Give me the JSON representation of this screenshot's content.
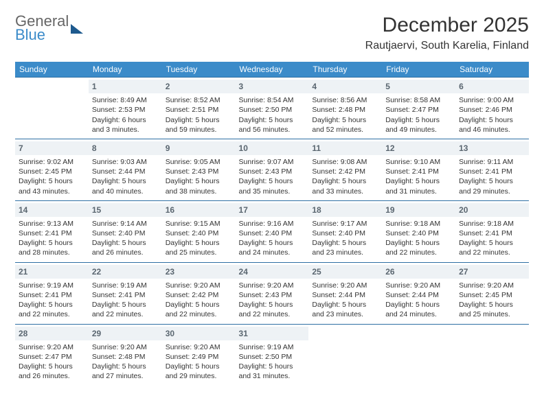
{
  "logo": {
    "line1": "General",
    "line2": "Blue"
  },
  "title": "December 2025",
  "location": "Rautjaervi, South Karelia, Finland",
  "colors": {
    "header_bg": "#3b8bc9",
    "header_text": "#ffffff",
    "daynum_bg": "#eef2f5",
    "daynum_text": "#5a6670",
    "border": "#2c6ea3",
    "body_text": "#333333"
  },
  "weekdays": [
    "Sunday",
    "Monday",
    "Tuesday",
    "Wednesday",
    "Thursday",
    "Friday",
    "Saturday"
  ],
  "weeks": [
    [
      null,
      {
        "n": 1,
        "sr": "8:49 AM",
        "ss": "2:53 PM",
        "dl": "6 hours and 3 minutes."
      },
      {
        "n": 2,
        "sr": "8:52 AM",
        "ss": "2:51 PM",
        "dl": "5 hours and 59 minutes."
      },
      {
        "n": 3,
        "sr": "8:54 AM",
        "ss": "2:50 PM",
        "dl": "5 hours and 56 minutes."
      },
      {
        "n": 4,
        "sr": "8:56 AM",
        "ss": "2:48 PM",
        "dl": "5 hours and 52 minutes."
      },
      {
        "n": 5,
        "sr": "8:58 AM",
        "ss": "2:47 PM",
        "dl": "5 hours and 49 minutes."
      },
      {
        "n": 6,
        "sr": "9:00 AM",
        "ss": "2:46 PM",
        "dl": "5 hours and 46 minutes."
      }
    ],
    [
      {
        "n": 7,
        "sr": "9:02 AM",
        "ss": "2:45 PM",
        "dl": "5 hours and 43 minutes."
      },
      {
        "n": 8,
        "sr": "9:03 AM",
        "ss": "2:44 PM",
        "dl": "5 hours and 40 minutes."
      },
      {
        "n": 9,
        "sr": "9:05 AM",
        "ss": "2:43 PM",
        "dl": "5 hours and 38 minutes."
      },
      {
        "n": 10,
        "sr": "9:07 AM",
        "ss": "2:43 PM",
        "dl": "5 hours and 35 minutes."
      },
      {
        "n": 11,
        "sr": "9:08 AM",
        "ss": "2:42 PM",
        "dl": "5 hours and 33 minutes."
      },
      {
        "n": 12,
        "sr": "9:10 AM",
        "ss": "2:41 PM",
        "dl": "5 hours and 31 minutes."
      },
      {
        "n": 13,
        "sr": "9:11 AM",
        "ss": "2:41 PM",
        "dl": "5 hours and 29 minutes."
      }
    ],
    [
      {
        "n": 14,
        "sr": "9:13 AM",
        "ss": "2:41 PM",
        "dl": "5 hours and 28 minutes."
      },
      {
        "n": 15,
        "sr": "9:14 AM",
        "ss": "2:40 PM",
        "dl": "5 hours and 26 minutes."
      },
      {
        "n": 16,
        "sr": "9:15 AM",
        "ss": "2:40 PM",
        "dl": "5 hours and 25 minutes."
      },
      {
        "n": 17,
        "sr": "9:16 AM",
        "ss": "2:40 PM",
        "dl": "5 hours and 24 minutes."
      },
      {
        "n": 18,
        "sr": "9:17 AM",
        "ss": "2:40 PM",
        "dl": "5 hours and 23 minutes."
      },
      {
        "n": 19,
        "sr": "9:18 AM",
        "ss": "2:40 PM",
        "dl": "5 hours and 22 minutes."
      },
      {
        "n": 20,
        "sr": "9:18 AM",
        "ss": "2:41 PM",
        "dl": "5 hours and 22 minutes."
      }
    ],
    [
      {
        "n": 21,
        "sr": "9:19 AM",
        "ss": "2:41 PM",
        "dl": "5 hours and 22 minutes."
      },
      {
        "n": 22,
        "sr": "9:19 AM",
        "ss": "2:41 PM",
        "dl": "5 hours and 22 minutes."
      },
      {
        "n": 23,
        "sr": "9:20 AM",
        "ss": "2:42 PM",
        "dl": "5 hours and 22 minutes."
      },
      {
        "n": 24,
        "sr": "9:20 AM",
        "ss": "2:43 PM",
        "dl": "5 hours and 22 minutes."
      },
      {
        "n": 25,
        "sr": "9:20 AM",
        "ss": "2:44 PM",
        "dl": "5 hours and 23 minutes."
      },
      {
        "n": 26,
        "sr": "9:20 AM",
        "ss": "2:44 PM",
        "dl": "5 hours and 24 minutes."
      },
      {
        "n": 27,
        "sr": "9:20 AM",
        "ss": "2:45 PM",
        "dl": "5 hours and 25 minutes."
      }
    ],
    [
      {
        "n": 28,
        "sr": "9:20 AM",
        "ss": "2:47 PM",
        "dl": "5 hours and 26 minutes."
      },
      {
        "n": 29,
        "sr": "9:20 AM",
        "ss": "2:48 PM",
        "dl": "5 hours and 27 minutes."
      },
      {
        "n": 30,
        "sr": "9:20 AM",
        "ss": "2:49 PM",
        "dl": "5 hours and 29 minutes."
      },
      {
        "n": 31,
        "sr": "9:19 AM",
        "ss": "2:50 PM",
        "dl": "5 hours and 31 minutes."
      },
      null,
      null,
      null
    ]
  ],
  "labels": {
    "sunrise": "Sunrise:",
    "sunset": "Sunset:",
    "daylight": "Daylight:"
  }
}
